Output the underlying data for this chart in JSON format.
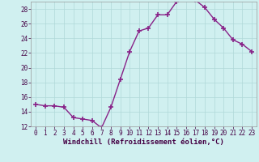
{
  "x": [
    0,
    1,
    2,
    3,
    4,
    5,
    6,
    7,
    8,
    9,
    10,
    11,
    12,
    13,
    14,
    15,
    16,
    17,
    18,
    19,
    20,
    21,
    22,
    23
  ],
  "y": [
    15.0,
    14.8,
    14.8,
    14.6,
    13.2,
    13.0,
    12.8,
    11.8,
    14.6,
    18.4,
    22.2,
    25.0,
    25.4,
    27.2,
    27.2,
    29.0,
    29.4,
    29.2,
    28.2,
    26.6,
    25.4,
    23.8,
    23.2,
    22.2
  ],
  "color": "#882288",
  "bg_color": "#d0f0f0",
  "grid_color": "#b0d8d8",
  "xlabel": "Windchill (Refroidissement éolien,°C)",
  "ylim": [
    12,
    29
  ],
  "xlim": [
    -0.5,
    23.5
  ],
  "yticks": [
    12,
    14,
    16,
    18,
    20,
    22,
    24,
    26,
    28
  ],
  "xticks": [
    0,
    1,
    2,
    3,
    4,
    5,
    6,
    7,
    8,
    9,
    10,
    11,
    12,
    13,
    14,
    15,
    16,
    17,
    18,
    19,
    20,
    21,
    22,
    23
  ],
  "marker": "+",
  "markersize": 4,
  "linewidth": 1.0,
  "xlabel_fontsize": 6.5,
  "tick_fontsize": 5.5
}
